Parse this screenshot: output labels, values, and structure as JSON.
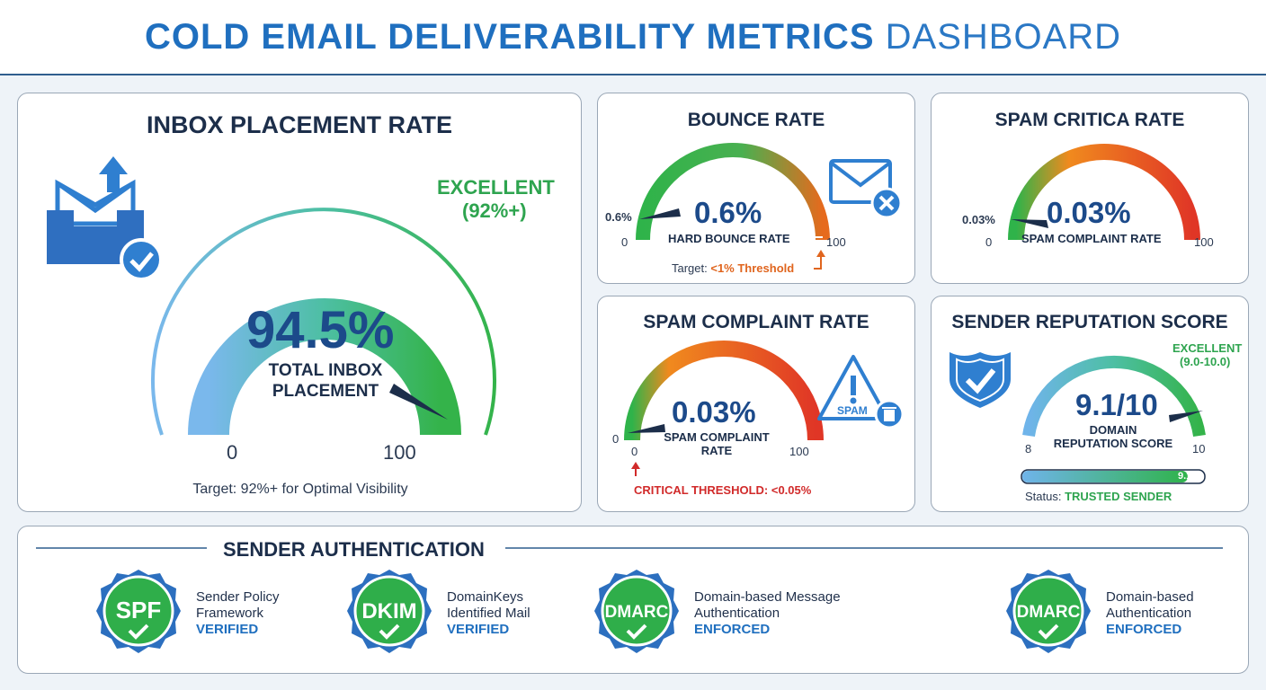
{
  "header": {
    "title_bold": "COLD EMAIL DELIVERABILITY METRICS",
    "title_light": "DASHBOARD"
  },
  "colors": {
    "primary": "#1f6fbf",
    "green": "#2ea44f",
    "orange": "#e0651e",
    "red": "#d12a2a",
    "navy": "#1c4a8a"
  },
  "inbox": {
    "title": "INBOX PLACEMENT RATE",
    "value": "94.5%",
    "value_number": 94.5,
    "label_line1": "TOTAL INBOX",
    "label_line2": "PLACEMENT",
    "rating_line1": "EXCELLENT",
    "rating_line2": "(92%+)",
    "min": "0",
    "max": "100",
    "target": "Target: 92%+ for Optimal Visibility",
    "icon": "inbox-upload-check-icon"
  },
  "bounce": {
    "title": "BOUNCE RATE",
    "value": "0.6%",
    "value_number": 0.6,
    "label": "HARD BOUNCE RATE",
    "pointer_label": "0.6%",
    "min": "0",
    "max": "100",
    "target_prefix": "Target: ",
    "target_value": "<1% Threshold",
    "icon": "mail-error-icon"
  },
  "spam_critica": {
    "title": "SPAM CRITICA RATE",
    "value": "0.03%",
    "value_number": 0.03,
    "label": "SPAM COMPLAINT RATE",
    "pointer_label": "0.03%",
    "min": "0",
    "max": "100"
  },
  "spam_complaint": {
    "title": "SPAM COMPLAINT RATE",
    "value": "0.03%",
    "value_number": 0.03,
    "label_line1": "SPAM COMPLAINT",
    "label_line2": "RATE",
    "min": "0",
    "min_inner": "0",
    "max": "100",
    "critical": "CRITICAL THRESHOLD: <0.05%",
    "icon_text": "SPAM",
    "icon": "spam-warning-trash-icon"
  },
  "reputation": {
    "title": "SENDER REPUTATION SCORE",
    "value": "9.1/10",
    "value_number": 9.1,
    "label_line1": "DOMAIN",
    "label_line2": "REPUTATION SCORE",
    "rating_line1": "EXCELLENT",
    "rating_line2": "(9.0-10.0)",
    "min": "8",
    "max": "10",
    "bar_value": "9.1",
    "bar_fraction": 0.91,
    "status_prefix": "Status: ",
    "status_value": "TRUSTED SENDER",
    "icon": "shield-check-icon"
  },
  "auth": {
    "title": "SENDER AUTHENTICATION",
    "items": [
      {
        "badge": "SPF",
        "line1": "Sender Policy",
        "line2": "Framework",
        "status": "VERIFIED"
      },
      {
        "badge": "DKIM",
        "line1": "DomainKeys",
        "line2": "Identified Mail",
        "status": "VERIFIED"
      },
      {
        "badge": "DMARC",
        "line1": "Domain-based Message",
        "line2": "Authentication",
        "status": "ENFORCED"
      },
      {
        "badge": "DMARC",
        "line1": "Domain-based",
        "line2": "Authentication",
        "status": "ENFORCED"
      }
    ]
  }
}
